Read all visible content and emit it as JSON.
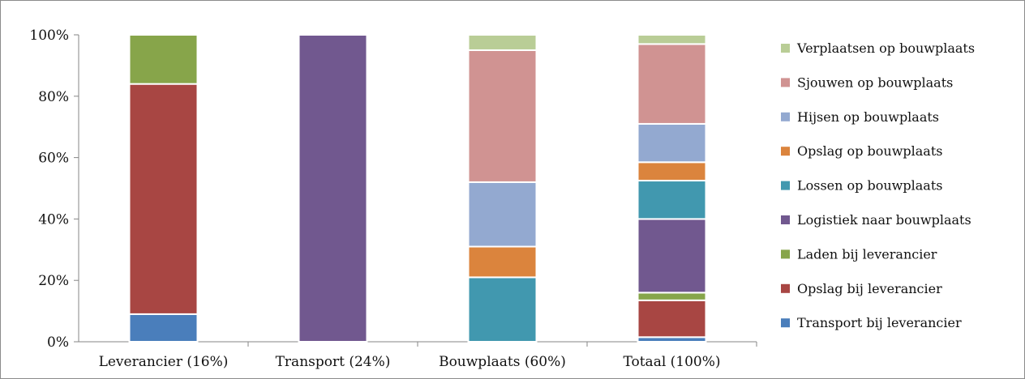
{
  "chart_data": {
    "type": "bar",
    "stacked": true,
    "percent": true,
    "title": "",
    "xlabel": "",
    "ylabel": "",
    "ylim": [
      0,
      100
    ],
    "y_ticks": [
      "0%",
      "20%",
      "40%",
      "60%",
      "80%",
      "100%"
    ],
    "grid": false,
    "legend_position": "right",
    "categories": [
      "Leverancier (16%)",
      "Transport (24%)",
      "Bouwplaats (60%)",
      "Totaal (100%)"
    ],
    "series": [
      {
        "name": "Transport bij leverancier",
        "color": "#4a7ebb",
        "values": [
          9,
          0,
          0,
          1.5
        ]
      },
      {
        "name": "Opslag bij leverancier",
        "color": "#a84643",
        "values": [
          75,
          0,
          0,
          12
        ]
      },
      {
        "name": "Laden bij leverancier",
        "color": "#87a54a",
        "values": [
          16,
          0,
          0,
          2.5
        ]
      },
      {
        "name": "Logistiek naar bouwplaats",
        "color": "#71588f",
        "values": [
          0,
          100,
          0,
          24
        ]
      },
      {
        "name": "Lossen op bouwplaats",
        "color": "#4198af",
        "values": [
          0,
          0,
          21,
          12.5
        ]
      },
      {
        "name": "Opslag op bouwplaats",
        "color": "#db843d",
        "values": [
          0,
          0,
          10,
          6
        ]
      },
      {
        "name": "Hijsen op bouwplaats",
        "color": "#93a9d0",
        "values": [
          0,
          0,
          21,
          12.5
        ]
      },
      {
        "name": "Sjouwen op bouwplaats",
        "color": "#d09392",
        "values": [
          0,
          0,
          43,
          26
        ]
      },
      {
        "name": "Verplaatsen op bouwplaats",
        "color": "#b9cd96",
        "values": [
          0,
          0,
          5,
          3
        ]
      }
    ]
  }
}
